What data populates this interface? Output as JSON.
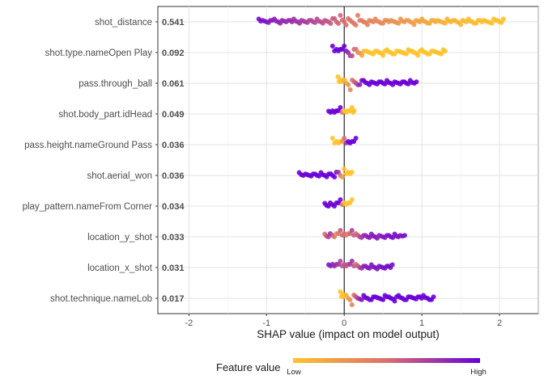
{
  "chart_data": {
    "type": "scatter",
    "subtype": "shap-beeswarm",
    "xlabel": "SHAP value (impact on model output)",
    "xlim": [
      -2.4,
      2.5
    ],
    "xticks": [
      -2,
      -1,
      0,
      1,
      2
    ],
    "grid": true,
    "zero_line": true,
    "colors": {
      "low": "#FFC32A",
      "mid": "#D9706E",
      "high": "#6A00D8"
    },
    "legend": {
      "title": "Feature value",
      "low_label": "Low",
      "high_label": "High",
      "position": "bottom"
    },
    "features": [
      {
        "name": "shot_distance",
        "importance": "0.541",
        "points": [
          {
            "x": -1.1,
            "v": 0.95
          },
          {
            "x": -1.05,
            "v": 0.92
          },
          {
            "x": -0.95,
            "v": 0.88
          },
          {
            "x": -0.9,
            "v": 0.85
          },
          {
            "x": -0.8,
            "v": 0.82
          },
          {
            "x": -0.72,
            "v": 0.8
          },
          {
            "x": -0.65,
            "v": 0.78
          },
          {
            "x": -0.55,
            "v": 0.75
          },
          {
            "x": -0.45,
            "v": 0.7
          },
          {
            "x": -0.35,
            "v": 0.66
          },
          {
            "x": -0.25,
            "v": 0.62
          },
          {
            "x": -0.15,
            "v": 0.58
          },
          {
            "x": -0.05,
            "v": 0.54
          },
          {
            "x": 0.05,
            "v": 0.48
          },
          {
            "x": 0.2,
            "v": 0.42
          },
          {
            "x": 0.4,
            "v": 0.36
          },
          {
            "x": 0.6,
            "v": 0.3
          },
          {
            "x": 0.8,
            "v": 0.25
          },
          {
            "x": 1.0,
            "v": 0.18
          },
          {
            "x": 1.2,
            "v": 0.12
          },
          {
            "x": 1.4,
            "v": 0.08
          },
          {
            "x": 1.6,
            "v": 0.05
          },
          {
            "x": 1.8,
            "v": 0.03
          },
          {
            "x": 1.95,
            "v": 0.02
          },
          {
            "x": 2.05,
            "v": 0.01
          }
        ]
      },
      {
        "name": "shot.type.nameOpen Play",
        "importance": "0.092",
        "points": [
          {
            "x": -0.15,
            "v": 1.0
          },
          {
            "x": -0.1,
            "v": 1.0
          },
          {
            "x": -0.05,
            "v": 1.0
          },
          {
            "x": 0.0,
            "v": 1.0
          },
          {
            "x": 0.28,
            "v": 0.0
          },
          {
            "x": 0.4,
            "v": 0.0
          },
          {
            "x": 0.55,
            "v": 0.0
          },
          {
            "x": 0.7,
            "v": 0.0
          },
          {
            "x": 0.85,
            "v": 0.0
          },
          {
            "x": 1.0,
            "v": 0.0
          },
          {
            "x": 1.15,
            "v": 0.0
          },
          {
            "x": 1.3,
            "v": 0.0
          }
        ]
      },
      {
        "name": "pass.through_ball",
        "importance": "0.061",
        "points": [
          {
            "x": -0.08,
            "v": 0.0
          },
          {
            "x": -0.05,
            "v": 0.0
          },
          {
            "x": -0.02,
            "v": 0.0
          },
          {
            "x": 0.25,
            "v": 1.0
          },
          {
            "x": 0.35,
            "v": 1.0
          },
          {
            "x": 0.45,
            "v": 1.0
          },
          {
            "x": 0.55,
            "v": 1.0
          },
          {
            "x": 0.65,
            "v": 1.0
          },
          {
            "x": 0.75,
            "v": 1.0
          },
          {
            "x": 0.85,
            "v": 1.0
          },
          {
            "x": 0.93,
            "v": 1.0
          }
        ]
      },
      {
        "name": "shot.body_part.idHead",
        "importance": "0.049",
        "points": [
          {
            "x": -0.2,
            "v": 1.0
          },
          {
            "x": -0.15,
            "v": 1.0
          },
          {
            "x": -0.1,
            "v": 1.0
          },
          {
            "x": -0.05,
            "v": 1.0
          },
          {
            "x": 0.0,
            "v": 0.0
          },
          {
            "x": 0.05,
            "v": 0.0
          },
          {
            "x": 0.1,
            "v": 0.0
          },
          {
            "x": 0.13,
            "v": 0.0
          }
        ]
      },
      {
        "name": "pass.height.nameGround Pass",
        "importance": "0.036",
        "points": [
          {
            "x": -0.15,
            "v": 0.0
          },
          {
            "x": -0.1,
            "v": 0.0
          },
          {
            "x": -0.05,
            "v": 0.0
          },
          {
            "x": 0.0,
            "v": 0.5
          },
          {
            "x": 0.05,
            "v": 1.0
          },
          {
            "x": 0.1,
            "v": 1.0
          },
          {
            "x": 0.15,
            "v": 1.0
          }
        ]
      },
      {
        "name": "shot.aerial_won",
        "importance": "0.036",
        "points": [
          {
            "x": -0.58,
            "v": 1.0
          },
          {
            "x": -0.5,
            "v": 1.0
          },
          {
            "x": -0.4,
            "v": 1.0
          },
          {
            "x": -0.3,
            "v": 1.0
          },
          {
            "x": -0.2,
            "v": 1.0
          },
          {
            "x": -0.1,
            "v": 1.0
          },
          {
            "x": 0.0,
            "v": 0.0
          },
          {
            "x": 0.05,
            "v": 0.0
          },
          {
            "x": 0.1,
            "v": 0.0
          }
        ]
      },
      {
        "name": "play_pattern.nameFrom Corner",
        "importance": "0.034",
        "points": [
          {
            "x": -0.25,
            "v": 1.0
          },
          {
            "x": -0.18,
            "v": 1.0
          },
          {
            "x": -0.1,
            "v": 1.0
          },
          {
            "x": -0.05,
            "v": 1.0
          },
          {
            "x": 0.0,
            "v": 0.0
          },
          {
            "x": 0.05,
            "v": 0.0
          },
          {
            "x": 0.1,
            "v": 0.0
          }
        ]
      },
      {
        "name": "location_y_shot",
        "importance": "0.033",
        "points": [
          {
            "x": -0.25,
            "v": 0.5
          },
          {
            "x": -0.18,
            "v": 0.8
          },
          {
            "x": -0.1,
            "v": 0.3
          },
          {
            "x": -0.05,
            "v": 0.6
          },
          {
            "x": 0.0,
            "v": 0.5
          },
          {
            "x": 0.05,
            "v": 0.4
          },
          {
            "x": 0.1,
            "v": 0.7
          },
          {
            "x": 0.15,
            "v": 0.5
          },
          {
            "x": 0.25,
            "v": 0.8
          },
          {
            "x": 0.35,
            "v": 0.9
          },
          {
            "x": 0.45,
            "v": 0.85
          },
          {
            "x": 0.55,
            "v": 0.9
          },
          {
            "x": 0.65,
            "v": 0.95
          },
          {
            "x": 0.72,
            "v": 0.9
          },
          {
            "x": 0.78,
            "v": 0.95
          }
        ]
      },
      {
        "name": "location_x_shot",
        "importance": "0.031",
        "points": [
          {
            "x": -0.2,
            "v": 0.9
          },
          {
            "x": -0.15,
            "v": 0.85
          },
          {
            "x": -0.1,
            "v": 0.8
          },
          {
            "x": -0.05,
            "v": 0.7
          },
          {
            "x": 0.0,
            "v": 0.6
          },
          {
            "x": 0.05,
            "v": 0.65
          },
          {
            "x": 0.1,
            "v": 0.8
          },
          {
            "x": 0.15,
            "v": 0.5
          },
          {
            "x": 0.25,
            "v": 0.85
          },
          {
            "x": 0.35,
            "v": 0.9
          },
          {
            "x": 0.45,
            "v": 0.9
          },
          {
            "x": 0.55,
            "v": 0.95
          },
          {
            "x": 0.62,
            "v": 0.95
          }
        ]
      },
      {
        "name": "shot.technique.nameLob",
        "importance": "0.017",
        "points": [
          {
            "x": -0.05,
            "v": 0.0
          },
          {
            "x": -0.02,
            "v": 0.0
          },
          {
            "x": 0.0,
            "v": 0.0
          },
          {
            "x": 0.25,
            "v": 1.0
          },
          {
            "x": 0.4,
            "v": 1.0
          },
          {
            "x": 0.55,
            "v": 1.0
          },
          {
            "x": 0.7,
            "v": 1.0
          },
          {
            "x": 0.85,
            "v": 1.0
          },
          {
            "x": 0.95,
            "v": 1.0
          },
          {
            "x": 1.02,
            "v": 1.0
          },
          {
            "x": 1.15,
            "v": 1.0
          }
        ]
      }
    ]
  }
}
